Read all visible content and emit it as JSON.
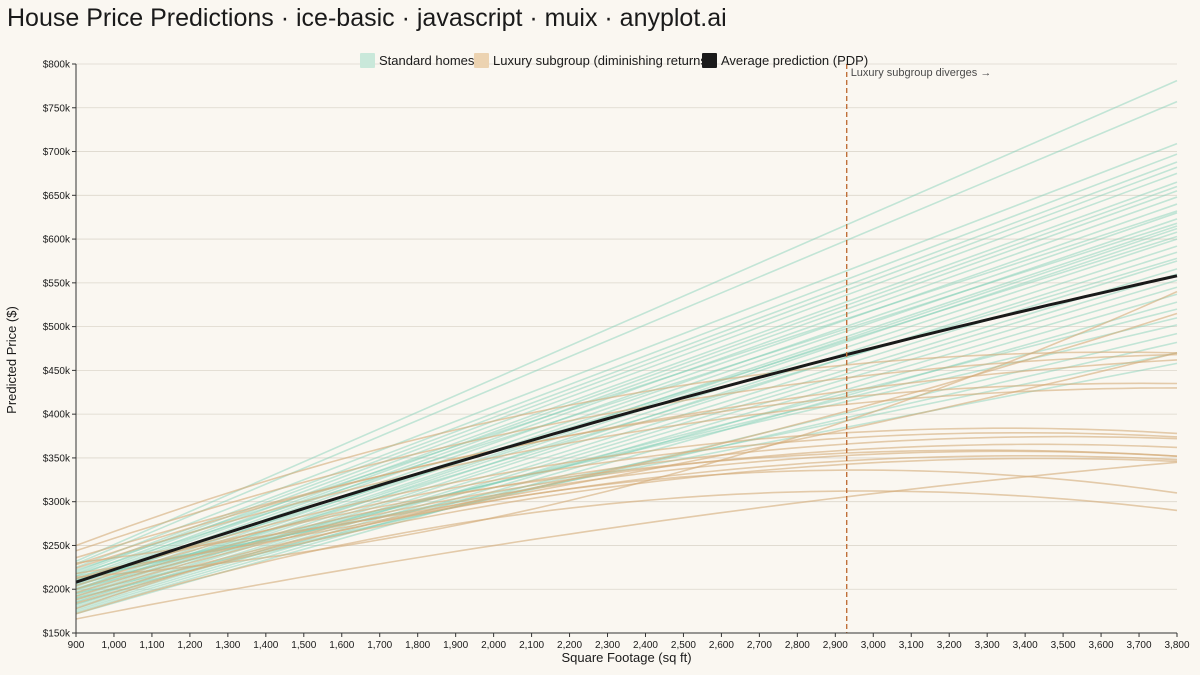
{
  "chart_data": {
    "type": "line",
    "title": "House Price Predictions · ice-basic · javascript · muix · anyplot.ai",
    "xlabel": "Square Footage (sq ft)",
    "ylabel": "Predicted Price ($)",
    "xlim": [
      900,
      3800
    ],
    "ylim": [
      150000,
      800000
    ],
    "x_ticks": [
      900,
      1000,
      1100,
      1200,
      1300,
      1400,
      1500,
      1600,
      1700,
      1800,
      1900,
      2000,
      2100,
      2200,
      2300,
      2400,
      2500,
      2600,
      2700,
      2800,
      2900,
      3000,
      3100,
      3200,
      3300,
      3400,
      3500,
      3600,
      3700,
      3800
    ],
    "x_tick_labels": [
      "900",
      "1,000",
      "1,100",
      "1,200",
      "1,300",
      "1,400",
      "1,500",
      "1,600",
      "1,700",
      "1,800",
      "1,900",
      "2,000",
      "2,100",
      "2,200",
      "2,300",
      "2,400",
      "2,500",
      "2,600",
      "2,700",
      "2,800",
      "2,900",
      "3,000",
      "3,100",
      "3,200",
      "3,300",
      "3,400",
      "3,500",
      "3,600",
      "3,700",
      "3,800"
    ],
    "y_ticks": [
      150000,
      200000,
      250000,
      300000,
      350000,
      400000,
      450000,
      500000,
      550000,
      600000,
      650000,
      700000,
      750000,
      800000
    ],
    "y_tick_labels": [
      "$150k",
      "$200k",
      "$250k",
      "$300k",
      "$350k",
      "$400k",
      "$450k",
      "$500k",
      "$550k",
      "$600k",
      "$650k",
      "$700k",
      "$750k",
      "$800k"
    ],
    "grid": "horizontal",
    "legend_position": "top-center",
    "legend": [
      {
        "label": "Standard homes",
        "color": "#7fcfb5"
      },
      {
        "label": "Luxury subgroup (diminishing returns)",
        "color": "#e3c49a"
      },
      {
        "label": "Average prediction (PDP)",
        "color": "#1a1a1a"
      }
    ],
    "annotation": {
      "x": 2930,
      "text": "Luxury subgroup diverges →",
      "color": "#c0703a"
    },
    "series": [
      {
        "name": "Average prediction (PDP)",
        "x": [
          900,
          2930,
          3800
        ],
        "values": [
          208000,
          468000,
          558000
        ],
        "color": "#1a1a1a"
      }
    ],
    "standard_lines": [
      {
        "y0": 232000,
        "y1": 781000
      },
      {
        "y0": 229000,
        "y1": 757000
      },
      {
        "y0": 225000,
        "y1": 709000
      },
      {
        "y0": 220000,
        "y1": 697000
      },
      {
        "y0": 218000,
        "y1": 688000
      },
      {
        "y0": 215000,
        "y1": 682000
      },
      {
        "y0": 212000,
        "y1": 675000
      },
      {
        "y0": 210000,
        "y1": 665000
      },
      {
        "y0": 208000,
        "y1": 660000
      },
      {
        "y0": 205000,
        "y1": 655000
      },
      {
        "y0": 203000,
        "y1": 648000
      },
      {
        "y0": 200000,
        "y1": 640000
      },
      {
        "y0": 198000,
        "y1": 630000
      },
      {
        "y0": 196000,
        "y1": 623000
      },
      {
        "y0": 194000,
        "y1": 615000
      },
      {
        "y0": 192000,
        "y1": 612000
      },
      {
        "y0": 190000,
        "y1": 608000
      },
      {
        "y0": 188000,
        "y1": 600000
      },
      {
        "y0": 186000,
        "y1": 592000
      },
      {
        "y0": 185000,
        "y1": 585000
      },
      {
        "y0": 183000,
        "y1": 575000
      },
      {
        "y0": 182000,
        "y1": 566000
      },
      {
        "y0": 180000,
        "y1": 560000
      },
      {
        "y0": 178000,
        "y1": 553000
      },
      {
        "y0": 176000,
        "y1": 545000
      },
      {
        "y0": 174000,
        "y1": 537000
      },
      {
        "y0": 172000,
        "y1": 528000
      },
      {
        "y0": 200000,
        "y1": 520000
      },
      {
        "y0": 205000,
        "y1": 510000
      },
      {
        "y0": 210000,
        "y1": 502000
      },
      {
        "y0": 190000,
        "y1": 492000
      },
      {
        "y0": 195000,
        "y1": 482000
      },
      {
        "y0": 212000,
        "y1": 470000
      },
      {
        "y0": 215000,
        "y1": 458000
      },
      {
        "y0": 222000,
        "y1": 632000
      },
      {
        "y0": 217000,
        "y1": 618000
      },
      {
        "y0": 207000,
        "y1": 603000
      },
      {
        "y0": 201000,
        "y1": 578000
      }
    ],
    "luxury_lines": [
      {
        "y0": 250000,
        "ymid": 455000,
        "y1": 470000
      },
      {
        "y0": 244000,
        "ymid": 440000,
        "y1": 468000
      },
      {
        "y0": 236000,
        "ymid": 425000,
        "y1": 462000
      },
      {
        "y0": 228000,
        "ymid": 418000,
        "y1": 435000
      },
      {
        "y0": 224000,
        "ymid": 410000,
        "y1": 430000
      },
      {
        "y0": 218000,
        "ymid": 400000,
        "y1": 515000
      },
      {
        "y0": 214000,
        "ymid": 388000,
        "y1": 540000
      },
      {
        "y0": 208000,
        "ymid": 378000,
        "y1": 378000
      },
      {
        "y0": 204000,
        "ymid": 372000,
        "y1": 374000
      },
      {
        "y0": 200000,
        "ymid": 365000,
        "y1": 372000
      },
      {
        "y0": 196000,
        "ymid": 358000,
        "y1": 362000
      },
      {
        "y0": 192000,
        "ymid": 352000,
        "y1": 352000
      },
      {
        "y0": 188000,
        "ymid": 346000,
        "y1": 348000
      },
      {
        "y0": 184000,
        "ymid": 342000,
        "y1": 346000
      },
      {
        "y0": 178000,
        "ymid": 336000,
        "y1": 310000
      },
      {
        "y0": 172000,
        "ymid": 312000,
        "y1": 290000
      },
      {
        "y0": 166000,
        "ymid": 304000,
        "y1": 345000
      },
      {
        "y0": 230000,
        "ymid": 380000,
        "y1": 470000
      },
      {
        "y0": 212000,
        "ymid": 355000,
        "y1": 352000
      }
    ]
  }
}
